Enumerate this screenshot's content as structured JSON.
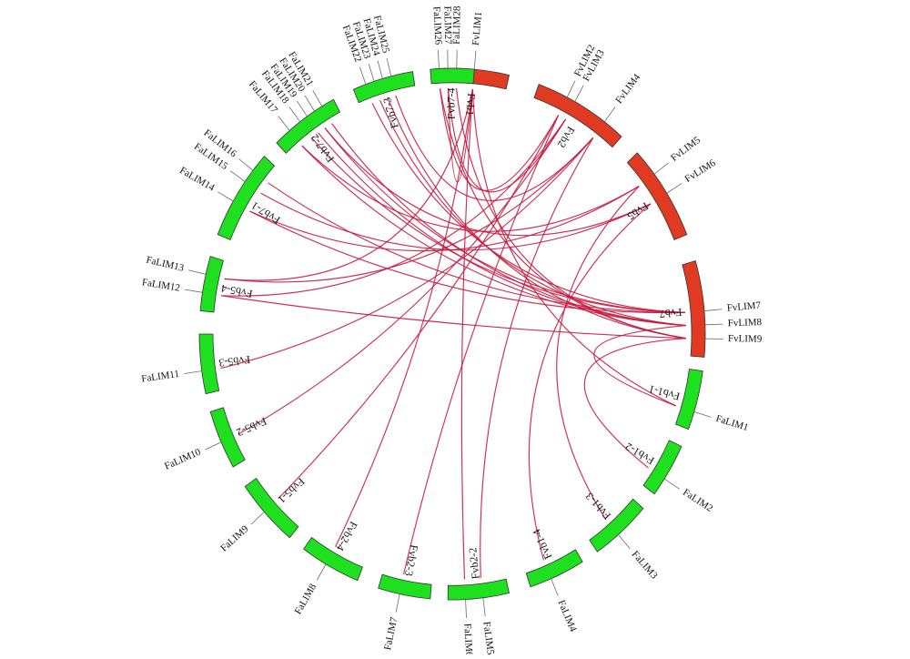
{
  "colors": {
    "fv": "#e03a22",
    "fa": "#1fe01f",
    "link": "#c8183e",
    "outline": "#333333"
  },
  "chromosomes": [
    {
      "id": "Fvb1",
      "label": "Fvb1",
      "group": "fv"
    },
    {
      "id": "Fvb2",
      "label": "Fvb2",
      "group": "fv"
    },
    {
      "id": "Fvb5",
      "label": "Fvb5",
      "group": "fv"
    },
    {
      "id": "Fvb7",
      "label": "Fvb7",
      "group": "fv"
    },
    {
      "id": "Fvb1-1",
      "label": "Fvb1-1",
      "group": "fa"
    },
    {
      "id": "Fvb1-2",
      "label": "Fvb1-2",
      "group": "fa"
    },
    {
      "id": "Fvb1-3",
      "label": "Fvb1-3",
      "group": "fa"
    },
    {
      "id": "Fvb1-4",
      "label": "Fvb1-4",
      "group": "fa"
    },
    {
      "id": "Fvb2-2",
      "label": "Fvb2-2",
      "group": "fa"
    },
    {
      "id": "Fvb2-3",
      "label": "Fvb2-3",
      "group": "fa"
    },
    {
      "id": "Fvb2-4",
      "label": "Fvb2-4",
      "group": "fa"
    },
    {
      "id": "Fvb5-1",
      "label": "Fvb5-1",
      "group": "fa"
    },
    {
      "id": "Fvb5-2",
      "label": "Fvb5-2",
      "group": "fa"
    },
    {
      "id": "Fvb5-3",
      "label": "Fvb5-3",
      "group": "fa"
    },
    {
      "id": "Fvb5-4",
      "label": "Fvb5-4",
      "group": "fa"
    },
    {
      "id": "Fvb7-1",
      "label": "Fvb7-1",
      "group": "fa"
    },
    {
      "id": "Fvb7-2",
      "label": "Fvb7-2",
      "group": "fa"
    },
    {
      "id": "Fvb7-3",
      "label": "Fvb7-3",
      "group": "fa"
    },
    {
      "id": "Fvb7-4",
      "label": "Fvb7-4",
      "group": "fa"
    }
  ],
  "genes": [
    {
      "label": "FvLIM1",
      "chr": "Fvb1"
    },
    {
      "label": "FvLIM2",
      "chr": "Fvb2"
    },
    {
      "label": "FvLIM3",
      "chr": "Fvb2"
    },
    {
      "label": "FvLIM4",
      "chr": "Fvb2"
    },
    {
      "label": "FvLIM5",
      "chr": "Fvb5"
    },
    {
      "label": "FvLIM6",
      "chr": "Fvb5"
    },
    {
      "label": "FvLIM7",
      "chr": "Fvb7"
    },
    {
      "label": "FvLIM8",
      "chr": "Fvb7"
    },
    {
      "label": "FvLIM9",
      "chr": "Fvb7"
    },
    {
      "label": "FaLIM1",
      "chr": "Fvb1-1"
    },
    {
      "label": "FaLIM2",
      "chr": "Fvb1-2"
    },
    {
      "label": "FaLIM3",
      "chr": "Fvb1-3"
    },
    {
      "label": "FaLIM4",
      "chr": "Fvb1-4"
    },
    {
      "label": "FaLIM5",
      "chr": "Fvb2-2"
    },
    {
      "label": "FaLIM6",
      "chr": "Fvb2-2"
    },
    {
      "label": "FaLIM7",
      "chr": "Fvb2-3"
    },
    {
      "label": "FaLIM8",
      "chr": "Fvb2-4"
    },
    {
      "label": "FaLIM9",
      "chr": "Fvb5-1"
    },
    {
      "label": "FaLIM10",
      "chr": "Fvb5-2"
    },
    {
      "label": "FaLIM11",
      "chr": "Fvb5-3"
    },
    {
      "label": "FaLIM12",
      "chr": "Fvb5-4"
    },
    {
      "label": "FaLIM13",
      "chr": "Fvb5-4"
    },
    {
      "label": "FaLIM14",
      "chr": "Fvb7-1"
    },
    {
      "label": "FaLIM15",
      "chr": "Fvb7-1"
    },
    {
      "label": "FaLIM16",
      "chr": "Fvb7-1"
    },
    {
      "label": "FaLIM17",
      "chr": "Fvb7-2"
    },
    {
      "label": "FaLIM18",
      "chr": "Fvb7-2"
    },
    {
      "label": "FaLIM19",
      "chr": "Fvb7-2"
    },
    {
      "label": "FaLIM20",
      "chr": "Fvb7-2"
    },
    {
      "label": "FaLIM21",
      "chr": "Fvb7-2"
    },
    {
      "label": "FaLIM22",
      "chr": "Fvb7-3"
    },
    {
      "label": "FaLIM23",
      "chr": "Fvb7-3"
    },
    {
      "label": "FaLIM24",
      "chr": "Fvb7-3"
    },
    {
      "label": "FaLIM25",
      "chr": "Fvb7-3"
    },
    {
      "label": "FaLIM26",
      "chr": "Fvb7-4"
    },
    {
      "label": "FaLIM27",
      "chr": "Fvb7-4"
    },
    {
      "label": "FaLIM28",
      "chr": "Fvb7-4"
    }
  ],
  "links": [
    [
      "FvLIM1",
      "FaLIM1"
    ],
    [
      "FvLIM1",
      "FaLIM6"
    ],
    [
      "FvLIM1",
      "FaLIM8"
    ],
    [
      "FvLIM1",
      "FaLIM13"
    ],
    [
      "FvLIM2",
      "FaLIM7"
    ],
    [
      "FvLIM2",
      "FaLIM9"
    ],
    [
      "FvLIM3",
      "FaLIM10"
    ],
    [
      "FvLIM3",
      "FaLIM12"
    ],
    [
      "FvLIM4",
      "FaLIM11"
    ],
    [
      "FvLIM4",
      "FaLIM13"
    ],
    [
      "FvLIM5",
      "FaLIM14"
    ],
    [
      "FvLIM5",
      "FaLIM17"
    ],
    [
      "FvLIM6",
      "FaLIM15"
    ],
    [
      "FvLIM6",
      "FaLIM20"
    ],
    [
      "FvLIM7",
      "FaLIM14"
    ],
    [
      "FvLIM7",
      "FaLIM16"
    ],
    [
      "FvLIM7",
      "FaLIM18"
    ],
    [
      "FvLIM7",
      "FaLIM20"
    ],
    [
      "FvLIM7",
      "FaLIM22"
    ],
    [
      "FvLIM8",
      "FaLIM17"
    ],
    [
      "FvLIM8",
      "FaLIM19"
    ],
    [
      "FvLIM8",
      "FaLIM21"
    ],
    [
      "FvLIM8",
      "FaLIM23"
    ],
    [
      "FvLIM9",
      "FaLIM12"
    ],
    [
      "FvLIM9",
      "FaLIM24"
    ],
    [
      "FvLIM9",
      "FaLIM26"
    ],
    [
      "FvLIM9",
      "FaLIM28"
    ],
    [
      "FvLIM9",
      "FaLIM2"
    ],
    [
      "FvLIM2",
      "FaLIM26"
    ],
    [
      "FvLIM3",
      "FaLIM27"
    ],
    [
      "FvLIM4",
      "FaLIM25"
    ],
    [
      "FvLIM1",
      "FaLIM27"
    ],
    [
      "FvLIM5",
      "FaLIM3"
    ],
    [
      "FvLIM6",
      "FaLIM4"
    ],
    [
      "FvLIM4",
      "FaLIM5"
    ],
    [
      "FvLIM8",
      "FaLIM1"
    ]
  ]
}
